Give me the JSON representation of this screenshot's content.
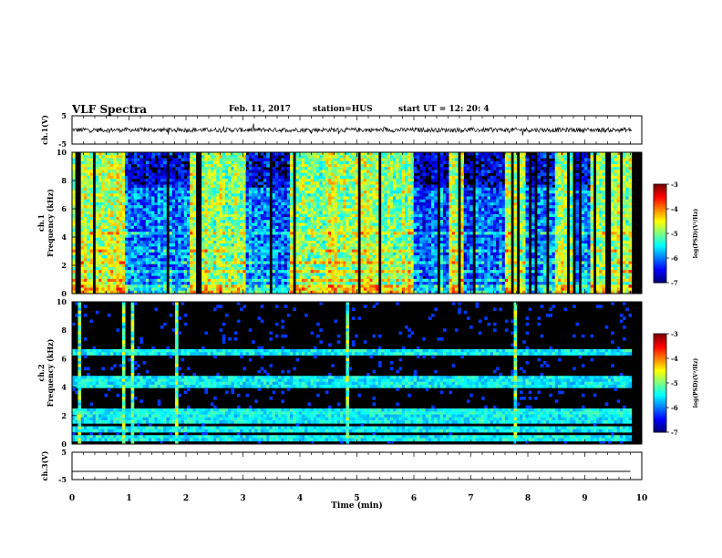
{
  "header": {
    "title": "VLF Spectra",
    "date": "Feb. 11, 2017",
    "station": "station=HUS",
    "start_ut": "start  UT =   12: 20: 4"
  },
  "chart_data": [
    {
      "type": "line",
      "panel": "ch1_waveform",
      "ylabel": "ch.1(V)",
      "ylim": [
        -5,
        5
      ],
      "yticks": [
        "5",
        "-5"
      ],
      "xlim": [
        0,
        10
      ],
      "x": [
        0,
        1,
        2,
        3,
        4,
        5,
        6,
        7,
        8,
        9,
        9.8
      ],
      "y": [
        0,
        0,
        0,
        0,
        0,
        0,
        0,
        0,
        0,
        0,
        0
      ],
      "style": "noisy trace near 0 V"
    },
    {
      "type": "heatmap",
      "panel": "ch1_spectrogram",
      "ylabel": "ch.1 Frequency (kHz)",
      "ylim": [
        0,
        10
      ],
      "yticks": [
        "0",
        "2",
        "4",
        "6",
        "8",
        "10"
      ],
      "xlim": [
        0,
        10
      ],
      "colorbar": {
        "label": "log(PSD)(V²/Hz)",
        "range": [
          -7,
          -3
        ],
        "ticks": [
          "-3",
          "-4",
          "-5",
          "-6",
          "-7"
        ]
      },
      "quiet_intervals_min": [
        [
          0.95,
          2.05
        ],
        [
          3.05,
          3.8
        ],
        [
          6.0,
          6.6
        ],
        [
          6.85,
          7.6
        ],
        [
          7.95,
          8.5
        ],
        [
          8.8,
          9.1
        ]
      ]
    },
    {
      "type": "heatmap",
      "panel": "ch2_spectrogram",
      "ylabel": "ch.2 Frequency (kHz)",
      "ylim": [
        0,
        10
      ],
      "yticks": [
        "0",
        "2",
        "4",
        "6",
        "8",
        "10"
      ],
      "xlim": [
        0,
        10
      ],
      "colorbar": {
        "label": "log(PSD)(V²/Hz)",
        "range": [
          -7,
          -3
        ],
        "ticks": [
          "-3",
          "-4",
          "-5",
          "-6",
          "-7"
        ]
      },
      "bands_khz": [
        0.4,
        1.0,
        1.6,
        2.0,
        2.3,
        4.2,
        4.5,
        6.4
      ],
      "impulses_min": [
        0.13,
        0.92,
        1.05,
        1.85,
        4.85,
        7.8
      ]
    },
    {
      "type": "line",
      "panel": "ch3_waveform",
      "ylabel": "ch.3(V)",
      "ylim": [
        -5,
        5
      ],
      "yticks": [
        "5",
        "-5"
      ],
      "xlim": [
        0,
        10
      ],
      "x": [
        0,
        9.8
      ],
      "y": [
        -2,
        -2
      ]
    }
  ],
  "xaxis": {
    "label": "Time  (min)",
    "ticks": [
      "0",
      "1",
      "2",
      "3",
      "4",
      "5",
      "6",
      "7",
      "8",
      "9",
      "10"
    ]
  },
  "colors": {
    "cmap_low": "#000080",
    "cmap_mid": "#00ff80",
    "cmap_high": "#ff0000"
  }
}
